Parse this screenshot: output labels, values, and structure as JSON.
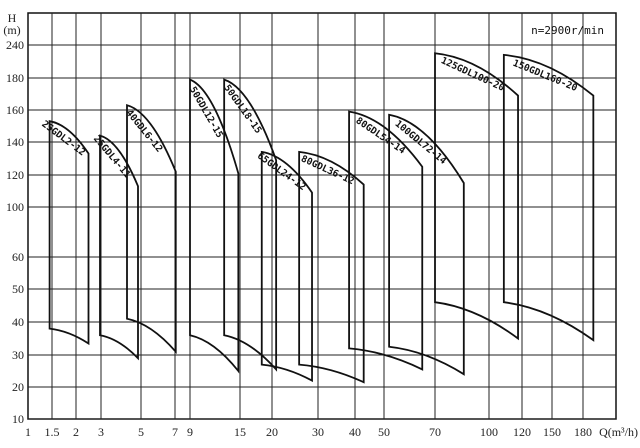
{
  "chart_data": {
    "type": "line",
    "title": "",
    "annotation": "n=2900r/min",
    "ylabel": "H\n(m)",
    "ylabel_parts": [
      "H",
      "(m)"
    ],
    "xlabel": "Q(m³/h)",
    "x_ticks": [
      1,
      1.5,
      2,
      3,
      5,
      7,
      9,
      15,
      20,
      30,
      40,
      50,
      70,
      100,
      120,
      150,
      180
    ],
    "y_ticks": [
      10,
      20,
      30,
      40,
      50,
      60,
      100,
      120,
      140,
      160,
      180,
      240
    ],
    "grid": true,
    "series": [
      {
        "name": "25GDL2-12",
        "q": [
          1.45,
          2.5
        ],
        "h_top": [
          153,
          133
        ],
        "h_bottom": [
          38,
          33.5
        ]
      },
      {
        "name": "25GDL4-11",
        "q": [
          2.96,
          4.85
        ],
        "h_top": [
          144,
          113
        ],
        "h_bottom": [
          36,
          29
        ]
      },
      {
        "name": "40GDL6-12",
        "q": [
          4.3,
          7.1
        ],
        "h_top": [
          163,
          122
        ],
        "h_bottom": [
          41,
          31
        ]
      },
      {
        "name": "50GDL12-15",
        "q": [
          9,
          14.8
        ],
        "h_top": [
          179,
          121
        ],
        "h_bottom": [
          36,
          25
        ]
      },
      {
        "name": "50GDL18-15",
        "q": [
          13.1,
          20.9
        ],
        "h_top": [
          179,
          129
        ],
        "h_bottom": [
          36,
          25.5
        ]
      },
      {
        "name": "65GDL24-12",
        "q": [
          18.4,
          28.7
        ],
        "h_top": [
          134,
          109
        ],
        "h_bottom": [
          27,
          22
        ]
      },
      {
        "name": "80GDL36-12",
        "q": [
          25.9,
          43
        ],
        "h_top": [
          134,
          114
        ],
        "h_bottom": [
          27,
          21.5
        ]
      },
      {
        "name": "80GDL54-14",
        "q": [
          38.4,
          65
        ],
        "h_top": [
          159,
          125
        ],
        "h_bottom": [
          32,
          25.5
        ]
      },
      {
        "name": "100GDL72-14",
        "q": [
          52,
          86
        ],
        "h_top": [
          157,
          115
        ],
        "h_bottom": [
          32.5,
          24
        ]
      },
      {
        "name": "125GDL100-20",
        "q": [
          70,
          117.6
        ],
        "h_top": [
          225,
          169
        ],
        "h_bottom": [
          46,
          35
        ]
      },
      {
        "name": "150GDL160-20",
        "q": [
          109,
          190
        ],
        "h_top": [
          222,
          169
        ],
        "h_bottom": [
          46,
          34.5
        ]
      }
    ]
  }
}
